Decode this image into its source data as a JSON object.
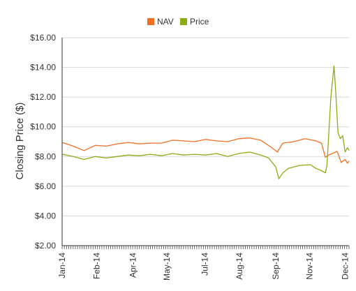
{
  "chart_data": {
    "type": "line",
    "title": "",
    "xlabel": "",
    "ylabel": "Closing Price ($)",
    "ylim": [
      2,
      16
    ],
    "y_ticks": [
      "$2.00",
      "$4.00",
      "$6.00",
      "$8.00",
      "$10.00",
      "$12.00",
      "$14.00",
      "$16.00"
    ],
    "y_tick_values": [
      2,
      4,
      6,
      8,
      10,
      12,
      14,
      16
    ],
    "x_range": [
      "2014-01-01",
      "2014-12-31"
    ],
    "x_ticks": [
      {
        "label": "Jan-14",
        "date": "2014-01-01"
      },
      {
        "label": "Feb-14",
        "date": "2014-02-14"
      },
      {
        "label": "Apr-14",
        "date": "2014-04-01"
      },
      {
        "label": "May-14",
        "date": "2014-05-14"
      },
      {
        "label": "Jul-14",
        "date": "2014-07-01"
      },
      {
        "label": "Aug-14",
        "date": "2014-08-14"
      },
      {
        "label": "Sep-14",
        "date": "2014-09-29"
      },
      {
        "label": "Nov-14",
        "date": "2014-11-11"
      },
      {
        "label": "Dec-14",
        "date": "2014-12-26"
      }
    ],
    "grid": true,
    "legend_position": "top-center",
    "colors": {
      "nav": "#f26f21",
      "price": "#8aad14",
      "grid": "#d9d9d9",
      "axis": "#333333"
    },
    "series": [
      {
        "name": "NAV",
        "color": "#f26f21",
        "points": [
          {
            "x": "2014-01-01",
            "y": 8.95
          },
          {
            "x": "2014-01-15",
            "y": 8.7
          },
          {
            "x": "2014-01-29",
            "y": 8.4
          },
          {
            "x": "2014-02-12",
            "y": 8.75
          },
          {
            "x": "2014-02-26",
            "y": 8.7
          },
          {
            "x": "2014-03-12",
            "y": 8.85
          },
          {
            "x": "2014-03-26",
            "y": 8.95
          },
          {
            "x": "2014-04-09",
            "y": 8.85
          },
          {
            "x": "2014-04-23",
            "y": 8.9
          },
          {
            "x": "2014-05-07",
            "y": 8.9
          },
          {
            "x": "2014-05-21",
            "y": 9.1
          },
          {
            "x": "2014-06-04",
            "y": 9.05
          },
          {
            "x": "2014-06-18",
            "y": 9.0
          },
          {
            "x": "2014-07-02",
            "y": 9.15
          },
          {
            "x": "2014-07-16",
            "y": 9.05
          },
          {
            "x": "2014-07-30",
            "y": 9.0
          },
          {
            "x": "2014-08-13",
            "y": 9.2
          },
          {
            "x": "2014-08-27",
            "y": 9.25
          },
          {
            "x": "2014-09-10",
            "y": 9.1
          },
          {
            "x": "2014-09-24",
            "y": 8.6
          },
          {
            "x": "2014-10-01",
            "y": 8.3
          },
          {
            "x": "2014-10-08",
            "y": 8.9
          },
          {
            "x": "2014-10-22",
            "y": 9.0
          },
          {
            "x": "2014-11-05",
            "y": 9.2
          },
          {
            "x": "2014-11-19",
            "y": 9.05
          },
          {
            "x": "2014-11-26",
            "y": 8.9
          },
          {
            "x": "2014-12-01",
            "y": 7.95
          },
          {
            "x": "2014-12-05",
            "y": 8.1
          },
          {
            "x": "2014-12-10",
            "y": 8.2
          },
          {
            "x": "2014-12-16",
            "y": 8.35
          },
          {
            "x": "2014-12-21",
            "y": 7.6
          },
          {
            "x": "2014-12-26",
            "y": 7.8
          },
          {
            "x": "2014-12-29",
            "y": 7.55
          },
          {
            "x": "2014-12-31",
            "y": 7.7
          }
        ]
      },
      {
        "name": "Price",
        "color": "#8aad14",
        "points": [
          {
            "x": "2014-01-01",
            "y": 8.15
          },
          {
            "x": "2014-01-15",
            "y": 8.0
          },
          {
            "x": "2014-01-29",
            "y": 7.8
          },
          {
            "x": "2014-02-12",
            "y": 8.0
          },
          {
            "x": "2014-02-26",
            "y": 7.9
          },
          {
            "x": "2014-03-12",
            "y": 8.0
          },
          {
            "x": "2014-03-26",
            "y": 8.1
          },
          {
            "x": "2014-04-09",
            "y": 8.05
          },
          {
            "x": "2014-04-23",
            "y": 8.15
          },
          {
            "x": "2014-05-07",
            "y": 8.05
          },
          {
            "x": "2014-05-21",
            "y": 8.2
          },
          {
            "x": "2014-06-04",
            "y": 8.1
          },
          {
            "x": "2014-06-18",
            "y": 8.15
          },
          {
            "x": "2014-07-02",
            "y": 8.1
          },
          {
            "x": "2014-07-16",
            "y": 8.2
          },
          {
            "x": "2014-07-30",
            "y": 8.0
          },
          {
            "x": "2014-08-13",
            "y": 8.2
          },
          {
            "x": "2014-08-27",
            "y": 8.3
          },
          {
            "x": "2014-09-10",
            "y": 8.1
          },
          {
            "x": "2014-09-20",
            "y": 7.9
          },
          {
            "x": "2014-09-29",
            "y": 7.3
          },
          {
            "x": "2014-10-03",
            "y": 6.5
          },
          {
            "x": "2014-10-08",
            "y": 6.9
          },
          {
            "x": "2014-10-15",
            "y": 7.2
          },
          {
            "x": "2014-10-29",
            "y": 7.4
          },
          {
            "x": "2014-11-12",
            "y": 7.45
          },
          {
            "x": "2014-11-19",
            "y": 7.2
          },
          {
            "x": "2014-11-26",
            "y": 7.05
          },
          {
            "x": "2014-12-01",
            "y": 6.9
          },
          {
            "x": "2014-12-03",
            "y": 7.4
          },
          {
            "x": "2014-12-08",
            "y": 12.0
          },
          {
            "x": "2014-12-12",
            "y": 14.1
          },
          {
            "x": "2014-12-14",
            "y": 12.5
          },
          {
            "x": "2014-12-17",
            "y": 9.6
          },
          {
            "x": "2014-12-20",
            "y": 9.2
          },
          {
            "x": "2014-12-23",
            "y": 9.4
          },
          {
            "x": "2014-12-26",
            "y": 8.3
          },
          {
            "x": "2014-12-29",
            "y": 8.6
          },
          {
            "x": "2014-12-31",
            "y": 8.4
          }
        ]
      }
    ]
  }
}
